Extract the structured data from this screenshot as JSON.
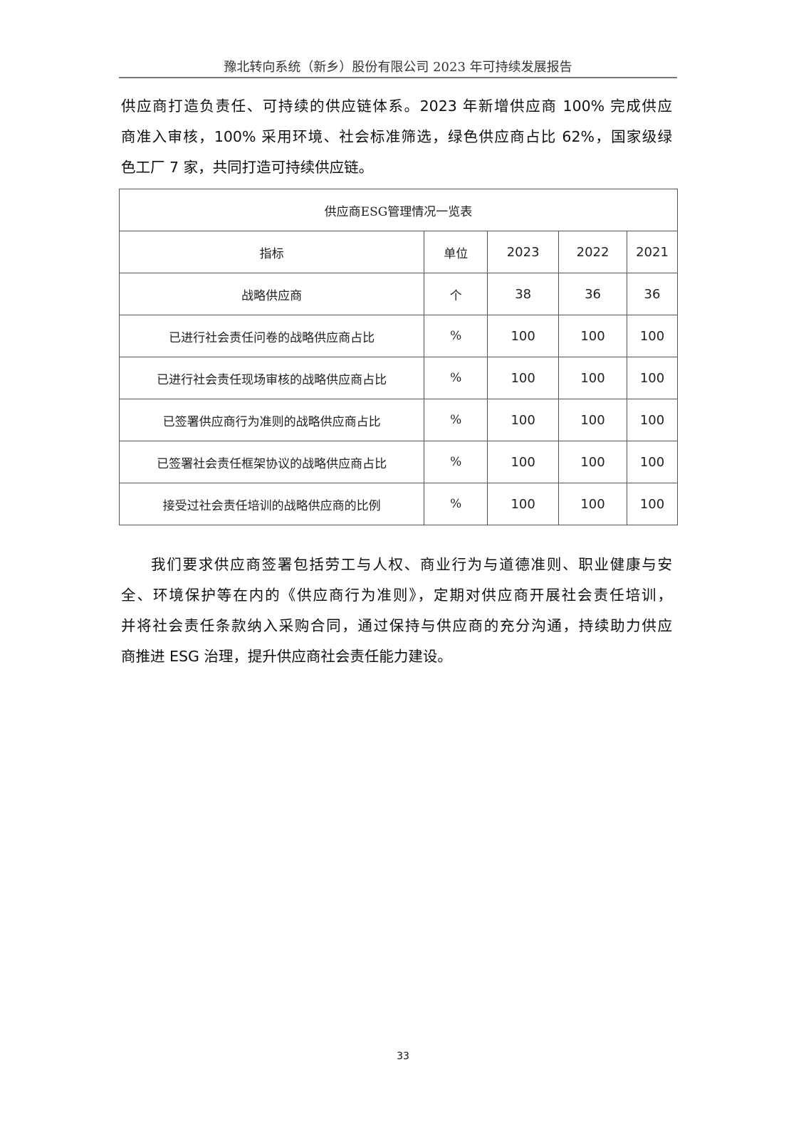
{
  "header": {
    "title": "豫北转向系统（新乡）股份有限公司 2023 年可持续发展报告"
  },
  "paragraph1": {
    "lines": [
      "供应商打造负责任、可持续的供应链体系。2023 年新增供应商 100% 完成供应",
      "商准入审核，100% 采用环境、社会标准筛选，绿色供应商占比 62%，国家级绿",
      "色工厂 7 家，共同打造可持续供应链。"
    ]
  },
  "table": {
    "title": "供应商ESG管理情况一览表",
    "headers": [
      "指标",
      "单位",
      "2023",
      "2022",
      "2021"
    ],
    "rows": [
      [
        "战略供应商",
        "个",
        "38",
        "36",
        "36"
      ],
      [
        "已进行社会责任问卷的战略供应商占比",
        "%",
        "100",
        "100",
        "100"
      ],
      [
        "已进行社会责任现场审核的战略供应商占比",
        "%",
        "100",
        "100",
        "100"
      ],
      [
        "已签署供应商行为准则的战略供应商占比",
        "%",
        "100",
        "100",
        "100"
      ],
      [
        "已签署社会责任框架协议的战略供应商占比",
        "%",
        "100",
        "100",
        "100"
      ],
      [
        "接受过社会责任培训的战略供应商的比例",
        "%",
        "100",
        "100",
        "100"
      ]
    ]
  },
  "paragraph2": {
    "lines": [
      "我们要求供应商签署包括劳工与人权、商业行为与道德准则、职业健康与安",
      "全、环境保护等在内的《供应商行为准则》，定期对供应商开展社会责任培训，",
      "并将社会责任条款纳入采购合同，通过保持与供应商的充分沟通，持续助力供应",
      "商推进 ESG 治理，提升供应商社会责任能力建设。"
    ]
  },
  "footer": {
    "page_number": "33"
  }
}
